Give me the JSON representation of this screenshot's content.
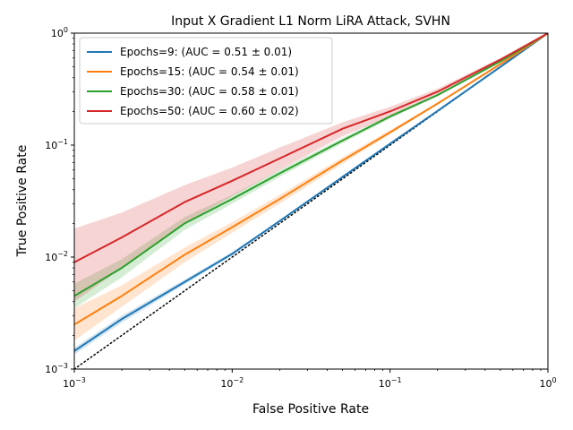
{
  "chart_data": {
    "type": "line",
    "title": "Input X Gradient L1 Norm LiRA Attack, SVHN",
    "xlabel": "False Positive Rate",
    "ylabel": "True Positive Rate",
    "xscale": "log",
    "yscale": "log",
    "xlim": [
      0.001,
      1
    ],
    "ylim": [
      0.001,
      1
    ],
    "grid": false,
    "legend_position": "top-left",
    "x_ticks": [
      {
        "value": 0.001,
        "base": "10",
        "exp": "−3"
      },
      {
        "value": 0.01,
        "base": "10",
        "exp": "−2"
      },
      {
        "value": 0.1,
        "base": "10",
        "exp": "−1"
      },
      {
        "value": 1,
        "base": "10",
        "exp": "0"
      }
    ],
    "y_ticks": [
      {
        "value": 0.001,
        "base": "10",
        "exp": "−3"
      },
      {
        "value": 0.01,
        "base": "10",
        "exp": "−2"
      },
      {
        "value": 0.1,
        "base": "10",
        "exp": "−1"
      },
      {
        "value": 1,
        "base": "10",
        "exp": "0"
      }
    ],
    "reference_line": {
      "x": [
        0.001,
        1
      ],
      "y": [
        0.001,
        1
      ],
      "color": "#000000",
      "style": "dotted"
    },
    "series": [
      {
        "name": "Epochs=9: (AUC = 0.51 ± 0.01)",
        "color": "#1f77b4",
        "x": [
          0.001,
          0.002,
          0.005,
          0.01,
          0.02,
          0.05,
          0.1,
          0.2,
          0.5,
          1
        ],
        "y": [
          0.00145,
          0.0028,
          0.006,
          0.0107,
          0.021,
          0.052,
          0.103,
          0.202,
          0.5,
          1
        ],
        "y_lower": [
          0.00135,
          0.0026,
          0.0057,
          0.0103,
          0.0205,
          0.051,
          0.101,
          0.2,
          0.495,
          1
        ],
        "y_upper": [
          0.00155,
          0.003,
          0.0063,
          0.0111,
          0.0215,
          0.053,
          0.105,
          0.204,
          0.505,
          1
        ]
      },
      {
        "name": "Epochs=15: (AUC = 0.54 ± 0.01)",
        "color": "#ff7f0e",
        "x": [
          0.001,
          0.002,
          0.005,
          0.01,
          0.02,
          0.05,
          0.1,
          0.2,
          0.5,
          1
        ],
        "y": [
          0.0025,
          0.0045,
          0.0105,
          0.0185,
          0.033,
          0.073,
          0.13,
          0.235,
          0.53,
          1
        ],
        "y_lower": [
          0.0018,
          0.0036,
          0.009,
          0.0165,
          0.03,
          0.068,
          0.125,
          0.23,
          0.52,
          1
        ],
        "y_upper": [
          0.0035,
          0.0056,
          0.0122,
          0.0205,
          0.036,
          0.078,
          0.136,
          0.24,
          0.54,
          1
        ]
      },
      {
        "name": "Epochs=30: (AUC = 0.58 ± 0.01)",
        "color": "#2ca02c",
        "x": [
          0.001,
          0.002,
          0.005,
          0.01,
          0.02,
          0.05,
          0.1,
          0.2,
          0.5,
          1
        ],
        "y": [
          0.0045,
          0.008,
          0.02,
          0.033,
          0.056,
          0.11,
          0.18,
          0.28,
          0.56,
          1
        ],
        "y_lower": [
          0.0035,
          0.0066,
          0.0175,
          0.03,
          0.052,
          0.104,
          0.173,
          0.272,
          0.55,
          1
        ],
        "y_upper": [
          0.0058,
          0.0096,
          0.0228,
          0.036,
          0.06,
          0.116,
          0.187,
          0.288,
          0.57,
          1
        ]
      },
      {
        "name": "Epochs=50: (AUC = 0.60 ± 0.02)",
        "color": "#d62728",
        "x": [
          0.001,
          0.002,
          0.005,
          0.01,
          0.02,
          0.05,
          0.1,
          0.2,
          0.5,
          1
        ],
        "y": [
          0.009,
          0.015,
          0.031,
          0.048,
          0.076,
          0.14,
          0.2,
          0.3,
          0.58,
          1
        ],
        "y_lower": [
          0.004,
          0.008,
          0.02,
          0.035,
          0.06,
          0.12,
          0.18,
          0.28,
          0.56,
          1
        ],
        "y_upper": [
          0.018,
          0.025,
          0.044,
          0.063,
          0.095,
          0.16,
          0.22,
          0.32,
          0.6,
          1
        ]
      }
    ]
  }
}
